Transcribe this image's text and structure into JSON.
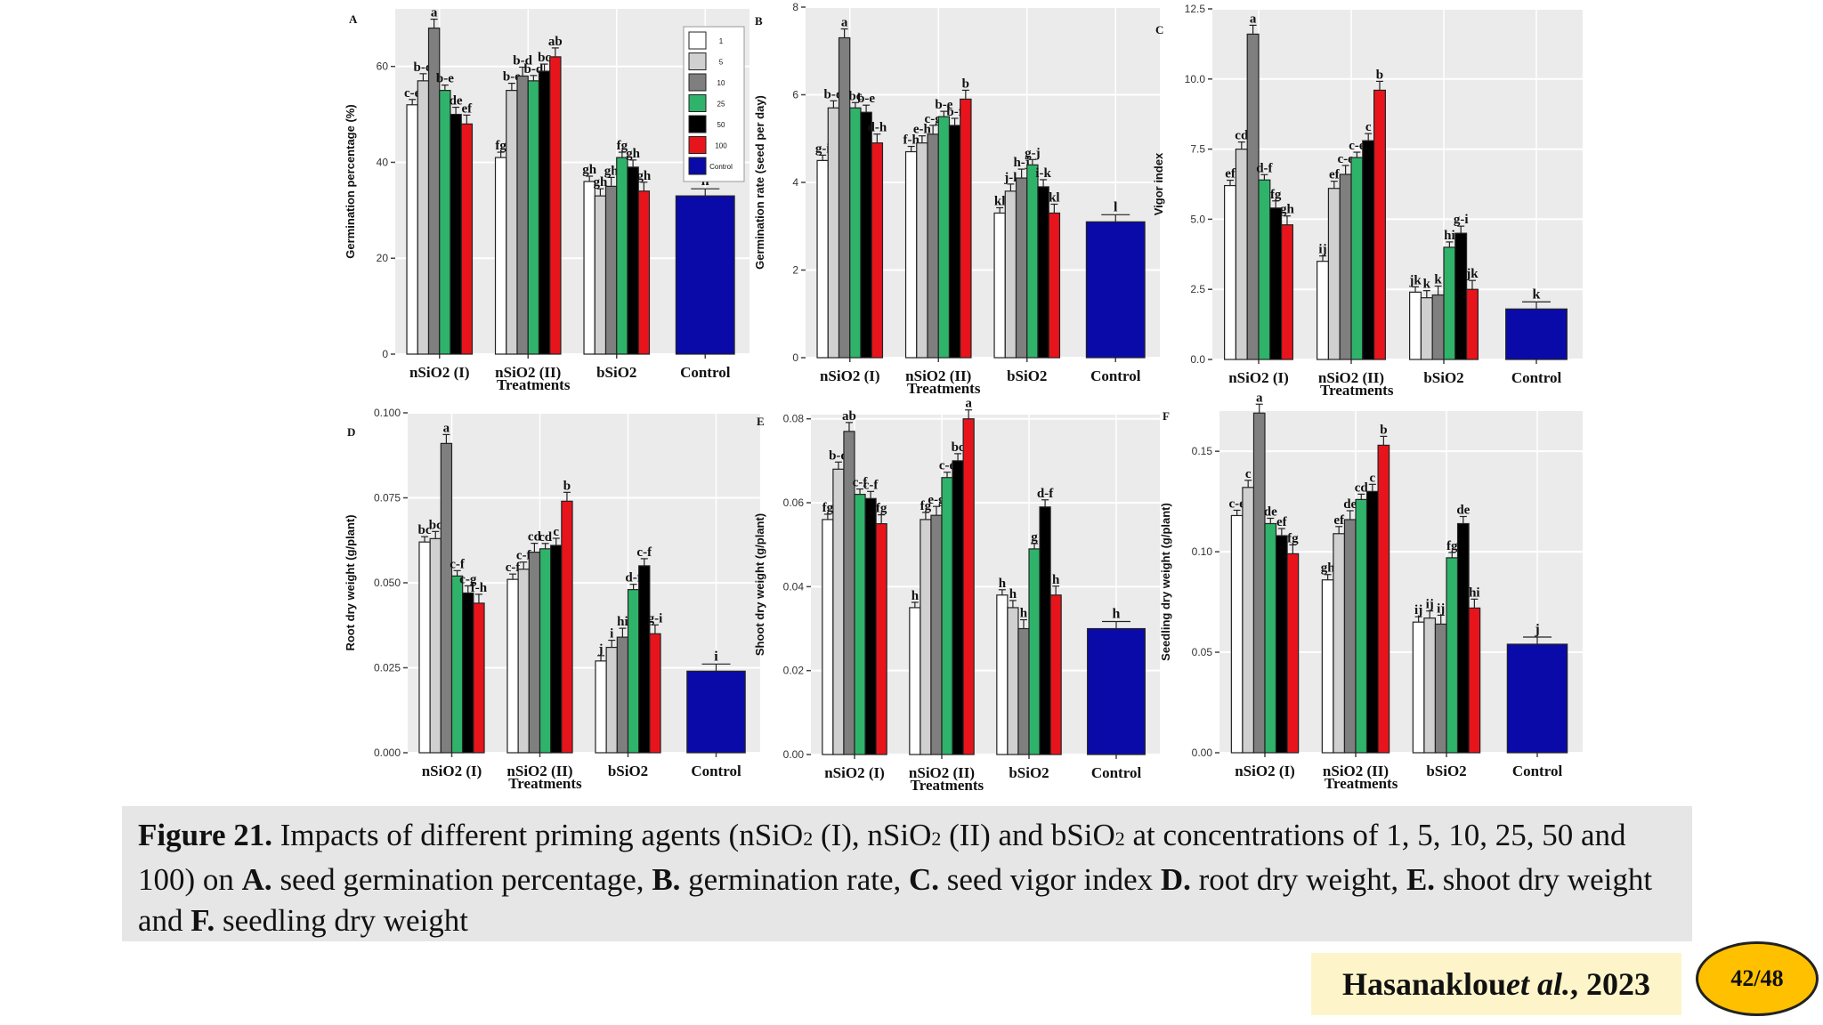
{
  "colors": {
    "1": "#ffffff",
    "5": "#d0d0d0",
    "10": "#7f7f7f",
    "25": "#2fb36a",
    "50": "#000000",
    "100": "#e8141c",
    "Control": "#0a0aa8"
  },
  "legend": {
    "labels": [
      "1",
      "5",
      "10",
      "25",
      "50",
      "100",
      "Control"
    ]
  },
  "chart_data": [
    {
      "type": "bar",
      "panel": "A",
      "xlabel": "Treatments",
      "ylabel": "Germination percentage (%)",
      "categories": [
        "nSiO2 (I)",
        "nSiO2 (II)",
        "bSiO2",
        "Control"
      ],
      "ylim": [
        0,
        72
      ],
      "yticks": [
        "0",
        "20",
        "40",
        "60"
      ],
      "series": [
        {
          "name": "1",
          "values": [
            52,
            41,
            36,
            null
          ],
          "labels": [
            "c-e",
            "fg",
            "gh",
            ""
          ]
        },
        {
          "name": "5",
          "values": [
            57,
            55,
            33,
            null
          ],
          "labels": [
            "b-d",
            "b-e",
            "gh",
            ""
          ]
        },
        {
          "name": "10",
          "values": [
            68,
            58,
            35,
            null
          ],
          "labels": [
            "a",
            "b-d",
            "gh",
            ""
          ]
        },
        {
          "name": "25",
          "values": [
            55,
            57,
            41,
            null
          ],
          "labels": [
            "b-e",
            "b-d",
            "fg",
            ""
          ]
        },
        {
          "name": "50",
          "values": [
            50,
            59,
            39,
            null
          ],
          "labels": [
            "de",
            "bc",
            "gh",
            ""
          ]
        },
        {
          "name": "100",
          "values": [
            48,
            62,
            34,
            null
          ],
          "labels": [
            "ef",
            "ab",
            "gh",
            ""
          ]
        },
        {
          "name": "Control",
          "values": [
            null,
            null,
            null,
            33
          ],
          "labels": [
            "",
            "",
            "",
            "h"
          ]
        }
      ]
    },
    {
      "type": "bar",
      "panel": "B",
      "xlabel": "Treatments",
      "ylabel": "Germination rate (seed per day)",
      "categories": [
        "nSiO2 (I)",
        "nSiO2 (II)",
        "bSiO2",
        "Control"
      ],
      "ylim": [
        0,
        8
      ],
      "yticks": [
        "0",
        "2",
        "4",
        "6",
        "8"
      ],
      "series": [
        {
          "name": "1",
          "values": [
            4.5,
            4.7,
            3.3,
            null
          ],
          "labels": [
            "g-i",
            "f-h",
            "kl",
            ""
          ]
        },
        {
          "name": "5",
          "values": [
            5.7,
            4.9,
            3.8,
            null
          ],
          "labels": [
            "b-d",
            "e-h",
            "j-l",
            ""
          ]
        },
        {
          "name": "10",
          "values": [
            7.3,
            5.1,
            4.1,
            null
          ],
          "labels": [
            "a",
            "c-g",
            "h-j",
            ""
          ]
        },
        {
          "name": "25",
          "values": [
            5.7,
            5.5,
            4.4,
            null
          ],
          "labels": [
            "bc",
            "b-e",
            "g-j",
            ""
          ]
        },
        {
          "name": "50",
          "values": [
            5.6,
            5.3,
            3.9,
            null
          ],
          "labels": [
            "b-e",
            "b-f",
            "i-k",
            ""
          ]
        },
        {
          "name": "100",
          "values": [
            4.9,
            5.9,
            3.3,
            null
          ],
          "labels": [
            "d-h",
            "b",
            "kl",
            ""
          ]
        },
        {
          "name": "Control",
          "values": [
            null,
            null,
            null,
            3.1
          ],
          "labels": [
            "",
            "",
            "",
            "l"
          ]
        }
      ]
    },
    {
      "type": "bar",
      "panel": "C",
      "xlabel": "Treatments",
      "ylabel": "Vigor index",
      "categories": [
        "nSiO2 (I)",
        "nSiO2 (II)",
        "bSiO2",
        "Control"
      ],
      "ylim": [
        0,
        12.5
      ],
      "yticks": [
        "0.0",
        "2.5",
        "5.0",
        "7.5",
        "10.0",
        "12.5"
      ],
      "series": [
        {
          "name": "1",
          "values": [
            6.2,
            3.5,
            2.4,
            null
          ],
          "labels": [
            "ef",
            "ij",
            "jk",
            ""
          ]
        },
        {
          "name": "5",
          "values": [
            7.5,
            6.1,
            2.2,
            null
          ],
          "labels": [
            "cd",
            "ef",
            "k",
            ""
          ]
        },
        {
          "name": "10",
          "values": [
            11.6,
            6.6,
            2.3,
            null
          ],
          "labels": [
            "a",
            "c-e",
            "k",
            ""
          ]
        },
        {
          "name": "25",
          "values": [
            6.4,
            7.2,
            4.0,
            null
          ],
          "labels": [
            "d-f",
            "c-e",
            "hi",
            ""
          ]
        },
        {
          "name": "50",
          "values": [
            5.4,
            7.8,
            4.5,
            null
          ],
          "labels": [
            "fg",
            "c",
            "g-i",
            ""
          ]
        },
        {
          "name": "100",
          "values": [
            4.8,
            9.6,
            2.5,
            null
          ],
          "labels": [
            "gh",
            "b",
            "jk",
            ""
          ]
        },
        {
          "name": "Control",
          "values": [
            null,
            null,
            null,
            1.8
          ],
          "labels": [
            "",
            "",
            "",
            "k"
          ]
        }
      ]
    },
    {
      "type": "bar",
      "panel": "D",
      "xlabel": "Treatments",
      "ylabel": "Root dry weight (g/plant)",
      "categories": [
        "nSiO2 (I)",
        "nSiO2 (II)",
        "bSiO2",
        "Control"
      ],
      "ylim": [
        0,
        0.1
      ],
      "yticks": [
        "0.000",
        "0.025",
        "0.050",
        "0.075",
        "0.100"
      ],
      "series": [
        {
          "name": "1",
          "values": [
            0.062,
            0.051,
            0.027,
            null
          ],
          "labels": [
            "bc",
            "c-f",
            "j",
            ""
          ]
        },
        {
          "name": "5",
          "values": [
            0.063,
            0.054,
            0.031,
            null
          ],
          "labels": [
            "bc",
            "c-f",
            "i",
            ""
          ]
        },
        {
          "name": "10",
          "values": [
            0.091,
            0.059,
            0.034,
            null
          ],
          "labels": [
            "a",
            "cd",
            "hi",
            ""
          ]
        },
        {
          "name": "25",
          "values": [
            0.052,
            0.06,
            0.048,
            null
          ],
          "labels": [
            "c-f",
            "cd",
            "d-f",
            ""
          ]
        },
        {
          "name": "50",
          "values": [
            0.047,
            0.061,
            0.055,
            null
          ],
          "labels": [
            "c-g",
            "c",
            "c-f",
            ""
          ]
        },
        {
          "name": "100",
          "values": [
            0.044,
            0.074,
            0.035,
            null
          ],
          "labels": [
            "f-h",
            "b",
            "g-i",
            ""
          ]
        },
        {
          "name": "Control",
          "values": [
            null,
            null,
            null,
            0.024
          ],
          "labels": [
            "",
            "",
            "",
            "i"
          ]
        }
      ]
    },
    {
      "type": "bar",
      "panel": "E",
      "xlabel": "Treatments",
      "ylabel": "Shoot dry weight (g/plant)",
      "categories": [
        "nSiO2 (I)",
        "nSiO2 (II)",
        "bSiO2",
        "Control"
      ],
      "ylim": [
        0,
        0.081
      ],
      "yticks": [
        "0.00",
        "0.02",
        "0.04",
        "0.06",
        "0.08"
      ],
      "series": [
        {
          "name": "1",
          "values": [
            0.056,
            0.035,
            0.038,
            null
          ],
          "labels": [
            "fg",
            "h",
            "h",
            ""
          ]
        },
        {
          "name": "5",
          "values": [
            0.068,
            0.056,
            0.035,
            null
          ],
          "labels": [
            "b-d",
            "fg",
            "h",
            ""
          ]
        },
        {
          "name": "10",
          "values": [
            0.077,
            0.057,
            0.03,
            null
          ],
          "labels": [
            "ab",
            "e-g",
            "h",
            ""
          ]
        },
        {
          "name": "25",
          "values": [
            0.062,
            0.066,
            0.049,
            null
          ],
          "labels": [
            "c-f",
            "c-e",
            "g",
            ""
          ]
        },
        {
          "name": "50",
          "values": [
            0.061,
            0.07,
            0.059,
            null
          ],
          "labels": [
            "c-f",
            "bc",
            "d-f",
            ""
          ]
        },
        {
          "name": "100",
          "values": [
            0.055,
            0.08,
            0.038,
            null
          ],
          "labels": [
            "fg",
            "a",
            "h",
            ""
          ]
        },
        {
          "name": "Control",
          "values": [
            null,
            null,
            null,
            0.03
          ],
          "labels": [
            "",
            "",
            "",
            "h"
          ]
        }
      ]
    },
    {
      "type": "bar",
      "panel": "F",
      "xlabel": "Treatments",
      "ylabel": "Seedling dry weight (g/plant)",
      "categories": [
        "nSiO2 (I)",
        "nSiO2 (II)",
        "bSiO2",
        "Control"
      ],
      "ylim": [
        0,
        0.17
      ],
      "yticks": [
        "0.00",
        "0.05",
        "0.10",
        "0.15"
      ],
      "series": [
        {
          "name": "1",
          "values": [
            0.118,
            0.086,
            0.065,
            null
          ],
          "labels": [
            "c-e",
            "gh",
            "ij",
            ""
          ]
        },
        {
          "name": "5",
          "values": [
            0.132,
            0.109,
            0.067,
            null
          ],
          "labels": [
            "c",
            "ef",
            "ij",
            ""
          ]
        },
        {
          "name": "10",
          "values": [
            0.169,
            0.116,
            0.064,
            null
          ],
          "labels": [
            "a",
            "de",
            "ij",
            ""
          ]
        },
        {
          "name": "25",
          "values": [
            0.114,
            0.126,
            0.097,
            null
          ],
          "labels": [
            "de",
            "cd",
            "fg",
            ""
          ]
        },
        {
          "name": "50",
          "values": [
            0.108,
            0.13,
            0.114,
            null
          ],
          "labels": [
            "ef",
            "c",
            "de",
            ""
          ]
        },
        {
          "name": "100",
          "values": [
            0.099,
            0.153,
            0.072,
            null
          ],
          "labels": [
            "fg",
            "b",
            "hi",
            ""
          ]
        },
        {
          "name": "Control",
          "values": [
            null,
            null,
            null,
            0.054
          ],
          "labels": [
            "",
            "",
            "",
            "j"
          ]
        }
      ]
    }
  ],
  "caption": {
    "figure_label": "Figure 21.",
    "t1": " Impacts of different priming agents (nSiO",
    "s1": "2",
    "t2": " (I), nSiO",
    "s2": "2",
    "t3": " (II) and bSiO",
    "s3": "2",
    "t4": " at concentrations of 1, 5, 10, 25, 50 and 100) on ",
    "a": "A.",
    "ta": " seed germination percentage, ",
    "b": "B.",
    "tb": " germination rate, ",
    "c": "C.",
    "tc": " seed vigor index ",
    "d": "D.",
    "td": " root dry weight, ",
    "e": "E.",
    "te": " shoot dry weight and ",
    "f": "F.",
    "tf": " seedling dry weight"
  },
  "citation": {
    "author": "Hasanaklou ",
    "etal": "et al.",
    "year": ", 2023"
  },
  "page": "42/48"
}
